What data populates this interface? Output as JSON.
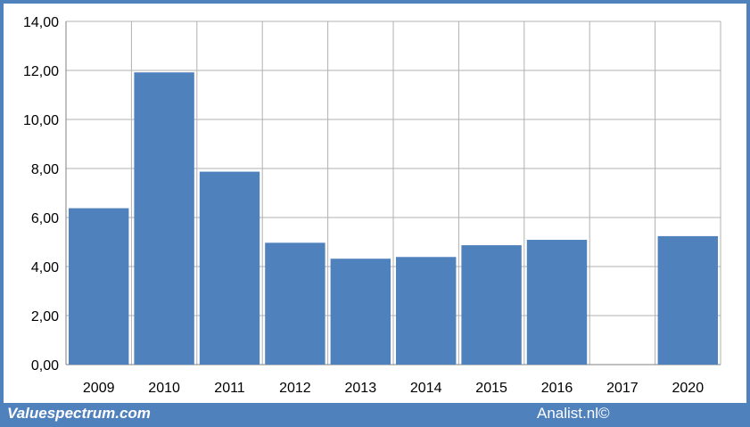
{
  "colors": {
    "frame": "#4f81bd",
    "bar": "#4f81bd",
    "grid": "#b0b0b0",
    "axis": "#808080"
  },
  "footer": {
    "left": "Valuespectrum.com",
    "right": "Analist.nl©"
  },
  "chart_data": {
    "type": "bar",
    "categories": [
      "2009",
      "2010",
      "2011",
      "2012",
      "2013",
      "2014",
      "2015",
      "2016",
      "2017",
      "2020"
    ],
    "values": [
      6.38,
      11.92,
      7.87,
      4.97,
      4.32,
      4.39,
      4.87,
      5.09,
      null,
      5.24
    ],
    "yticks": [
      "0,00",
      "2,00",
      "4,00",
      "6,00",
      "8,00",
      "10,00",
      "12,00",
      "14,00"
    ],
    "ylim": [
      0,
      14
    ],
    "grid": true,
    "title": "",
    "xlabel": "",
    "ylabel": ""
  }
}
